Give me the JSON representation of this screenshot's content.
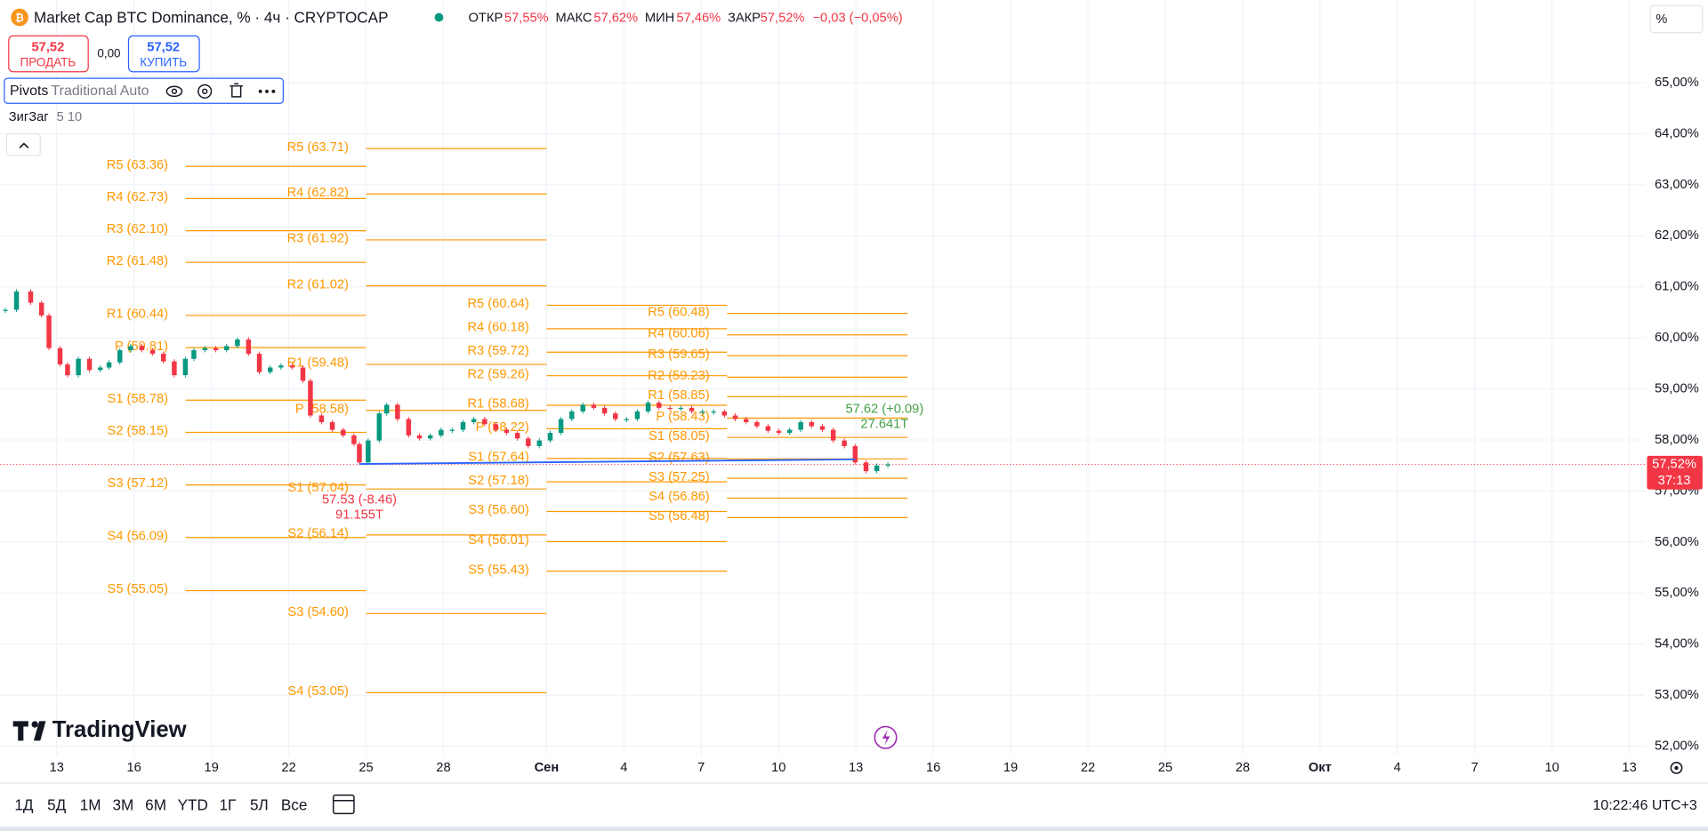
{
  "header": {
    "symbol": "Market Cap BTC Dominance, % · 4ч · CRYPTOCAP",
    "ohlc": [
      {
        "label": "ОТКР",
        "value": "57,55%"
      },
      {
        "label": "МАКС",
        "value": "57,62%"
      },
      {
        "label": "МИН",
        "value": "57,46%"
      },
      {
        "label": "ЗАКР",
        "value": "57,52%"
      }
    ],
    "change": "−0,03 (−0,05%)",
    "scale_mode": "%"
  },
  "trade": {
    "sell_price": "57,52",
    "sell_label": "ПРОДАТЬ",
    "spread": "0,00",
    "buy_price": "57,52",
    "buy_label": "КУПИТЬ"
  },
  "indicators": [
    {
      "name": "Pivots",
      "params": "Traditional Auto"
    },
    {
      "name": "ЗигЗаг",
      "params": "5 10"
    }
  ],
  "logo": "TradingView",
  "toolbar": {
    "ranges": [
      "1Д",
      "5Д",
      "1М",
      "3М",
      "6М",
      "YTD",
      "1Г",
      "5Л",
      "Все"
    ],
    "clock": "10:22:46 UTC+3"
  },
  "chart_data": {
    "type": "candlestick",
    "x": [
      -1.99,
      -1.56,
      -1.01,
      -0.59,
      -0.3,
      0.13,
      0.42,
      0.84,
      1.27,
      1.69,
      2.03,
      2.45,
      2.87,
      3.3,
      3.72,
      4.14,
      4.56,
      4.99,
      5.32,
      5.75,
      6.17,
      6.59,
      7.01,
      7.44,
      7.86,
      8.28,
      8.7,
      9.13,
      9.55,
      9.84,
      10.27,
      10.69,
      11.11,
      11.53,
      11.74,
      12.08,
      12.51,
      12.8,
      13.22,
      13.65,
      14.07,
      14.49,
      14.91,
      15.34,
      15.76,
      16.18,
      16.6,
      17.03,
      17.45,
      17.87,
      18.29,
      18.72,
      19.14,
      19.56,
      19.98,
      20.41,
      20.83,
      21.25,
      21.67,
      22.1,
      22.52,
      22.94,
      23.36,
      23.79,
      24.21,
      24.63,
      25.05,
      25.48,
      25.9,
      26.32,
      26.74,
      27.16,
      27.59,
      28.01,
      28.43,
      28.86,
      29.28,
      29.7,
      30.12,
      30.55,
      30.97,
      31.39,
      31.81,
      32.24
    ],
    "close": [
      60.55,
      60.91,
      60.69,
      60.44,
      59.8,
      59.48,
      59.27,
      59.59,
      59.37,
      59.42,
      59.52,
      59.76,
      59.84,
      59.76,
      59.69,
      59.54,
      59.27,
      59.59,
      59.76,
      59.8,
      59.76,
      59.84,
      59.97,
      59.69,
      59.33,
      59.42,
      59.46,
      59.42,
      59.16,
      58.48,
      58.35,
      58.2,
      58.09,
      57.92,
      57.56,
      57.99,
      58.52,
      58.69,
      58.41,
      58.09,
      58.03,
      58.09,
      58.2,
      58.2,
      58.35,
      58.41,
      58.31,
      58.2,
      58.14,
      58.03,
      57.88,
      57.99,
      58.14,
      58.41,
      58.56,
      58.69,
      58.63,
      58.52,
      58.41,
      58.41,
      58.56,
      58.73,
      58.63,
      58.61,
      58.63,
      58.56,
      58.56,
      58.56,
      58.48,
      58.41,
      58.35,
      58.27,
      58.18,
      58.14,
      58.2,
      58.35,
      58.27,
      58.2,
      57.99,
      57.88,
      57.56,
      57.39,
      57.5,
      57.52
    ],
    "up_color": "#089981",
    "down_color": "#f23645",
    "xlim": [
      -2.2,
      61.6
    ],
    "xticks": [
      {
        "value": 0,
        "label": "13"
      },
      {
        "value": 3,
        "label": "16"
      },
      {
        "value": 6,
        "label": "19"
      },
      {
        "value": 9,
        "label": "22"
      },
      {
        "value": 12,
        "label": "25"
      },
      {
        "value": 15,
        "label": "28"
      },
      {
        "value": 19,
        "label": "Сен"
      },
      {
        "value": 22,
        "label": "4"
      },
      {
        "value": 25,
        "label": "7"
      },
      {
        "value": 28,
        "label": "10"
      },
      {
        "value": 31,
        "label": "13"
      },
      {
        "value": 34,
        "label": "16"
      },
      {
        "value": 37,
        "label": "19"
      },
      {
        "value": 40,
        "label": "22"
      },
      {
        "value": 43,
        "label": "25"
      },
      {
        "value": 46,
        "label": "28"
      },
      {
        "value": 49,
        "label": "Окт"
      },
      {
        "value": 52,
        "label": "4"
      },
      {
        "value": 55,
        "label": "7"
      },
      {
        "value": 58,
        "label": "10"
      },
      {
        "value": 61,
        "label": "13"
      }
    ],
    "ylim": [
      51.81,
      66.62
    ],
    "yticks": [
      {
        "value": 52,
        "label": "52,00%"
      },
      {
        "value": 53,
        "label": "53,00%"
      },
      {
        "value": 54,
        "label": "54,00%"
      },
      {
        "value": 55,
        "label": "55,00%"
      },
      {
        "value": 56,
        "label": "56,00%"
      },
      {
        "value": 57,
        "label": "57,00%"
      },
      {
        "value": 58,
        "label": "58,00%"
      },
      {
        "value": 59,
        "label": "59,00%"
      },
      {
        "value": 60,
        "label": "60,00%"
      },
      {
        "value": 61,
        "label": "61,00%"
      },
      {
        "value": 62,
        "label": "62,00%"
      },
      {
        "value": 63,
        "label": "63,00%"
      },
      {
        "value": 64,
        "label": "64,00%"
      },
      {
        "value": 65,
        "label": "65,00%"
      }
    ],
    "grid": true,
    "pivot_color": "#ff9800",
    "pivots": [
      {
        "start": 5,
        "end": 12,
        "levels": [
          {
            "label": "R5 (63.36)",
            "value": 63.36
          },
          {
            "label": "R4 (62.73)",
            "value": 62.73
          },
          {
            "label": "R3 (62.10)",
            "value": 62.1
          },
          {
            "label": "R2 (61.48)",
            "value": 61.48
          },
          {
            "label": "R1 (60.44)",
            "value": 60.44
          },
          {
            "label": "P (59.81)",
            "value": 59.81
          },
          {
            "label": "S1 (58.78)",
            "value": 58.78
          },
          {
            "label": "S2 (58.15)",
            "value": 58.15
          },
          {
            "label": "S3 (57.12)",
            "value": 57.12
          },
          {
            "label": "S4 (56.09)",
            "value": 56.09
          },
          {
            "label": "S5 (55.05)",
            "value": 55.05
          }
        ]
      },
      {
        "start": 12,
        "end": 19,
        "levels": [
          {
            "label": "R5 (63.71)",
            "value": 63.71
          },
          {
            "label": "R4 (62.82)",
            "value": 62.82
          },
          {
            "label": "R3 (61.92)",
            "value": 61.92
          },
          {
            "label": "R2 (61.02)",
            "value": 61.02
          },
          {
            "label": "R1 (59.48)",
            "value": 59.48
          },
          {
            "label": "P (58.58)",
            "value": 58.58
          },
          {
            "label": "S1 (57.04)",
            "value": 57.04
          },
          {
            "label": "S2 (56.14)",
            "value": 56.14
          },
          {
            "label": "S3 (54.60)",
            "value": 54.6
          },
          {
            "label": "S4 (53.05)",
            "value": 53.05
          }
        ]
      },
      {
        "start": 19,
        "end": 26,
        "levels": [
          {
            "label": "R5 (60.64)",
            "value": 60.64
          },
          {
            "label": "R4 (60.18)",
            "value": 60.18
          },
          {
            "label": "R3 (59.72)",
            "value": 59.72
          },
          {
            "label": "R2 (59.26)",
            "value": 59.26
          },
          {
            "label": "R1 (58.68)",
            "value": 58.68
          },
          {
            "label": "P (58.22)",
            "value": 58.22
          },
          {
            "label": "S1 (57.64)",
            "value": 57.64
          },
          {
            "label": "S2 (57.18)",
            "value": 57.18
          },
          {
            "label": "S3 (56.60)",
            "value": 56.6
          },
          {
            "label": "S4 (56.01)",
            "value": 56.01
          },
          {
            "label": "S5 (55.43)",
            "value": 55.43
          }
        ]
      },
      {
        "start": 26,
        "end": 33,
        "levels": [
          {
            "label": "R5 (60.48)",
            "value": 60.48
          },
          {
            "label": "R4 (60.06)",
            "value": 60.06
          },
          {
            "label": "R3 (59.65)",
            "value": 59.65
          },
          {
            "label": "R2 (59.23)",
            "value": 59.23
          },
          {
            "label": "R1 (58.85)",
            "value": 58.85
          },
          {
            "label": "P (58.43)",
            "value": 58.43
          },
          {
            "label": "S1 (58.05)",
            "value": 58.05
          },
          {
            "label": "S2 (57.63)",
            "value": 57.63
          },
          {
            "label": "S3 (57.25)",
            "value": 57.25
          },
          {
            "label": "S4 (56.86)",
            "value": 56.86
          },
          {
            "label": "S5 (56.48)",
            "value": 56.48
          }
        ]
      }
    ],
    "zigzag": {
      "color": "#2962ff",
      "points": [
        {
          "x": 11.74,
          "y": 57.53,
          "label": "57.53 (-8.46)",
          "volume": "91.155T",
          "color": "#f23645"
        },
        {
          "x": 30.97,
          "y": 57.62,
          "label": "57.62 (+0.09)",
          "volume": "27.641T",
          "color": "#43a047"
        }
      ]
    },
    "last": {
      "value": 57.52,
      "label": "57,52%",
      "countdown": "37:13",
      "color": "#f23645"
    }
  }
}
